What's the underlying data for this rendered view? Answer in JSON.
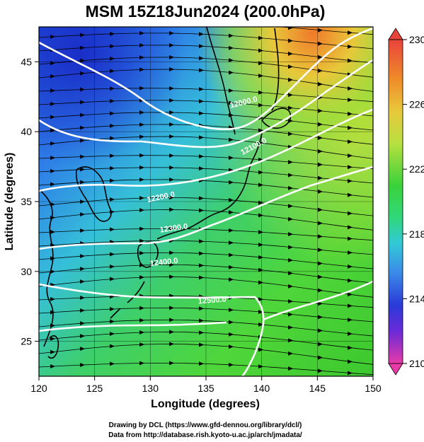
{
  "title": "MSM 15Z18Jun2024 (200.0hPa)",
  "xlabel": "Longitude (degrees)",
  "ylabel": "Latitude  (degrees)",
  "x_ticks": [
    "120",
    "125",
    "130",
    "135",
    "140",
    "145",
    "150"
  ],
  "y_ticks": [
    "25",
    "30",
    "35",
    "40",
    "45"
  ],
  "colorbar": {
    "labels": [
      "230",
      "226",
      "222",
      "218",
      "214",
      "210"
    ],
    "values": [
      230,
      226,
      222,
      218,
      214,
      210
    ],
    "colors": [
      "#e8443a",
      "#f08a2a",
      "#e8d23a",
      "#b8e040",
      "#3ad23a",
      "#2fd87a",
      "#32c8d8",
      "#3a8ae8",
      "#2a3ad8",
      "#6a2ad8",
      "#c82ac8",
      "#e83aa8"
    ]
  },
  "contours": [
    {
      "label": "12000.0"
    },
    {
      "label": "12100.0"
    },
    {
      "label": "12200.0"
    },
    {
      "label": "12300.0"
    },
    {
      "label": "12400.0"
    },
    {
      "label": "12500.0"
    }
  ],
  "credits": {
    "line1": "Drawing by DCL (https://www.gfd-dennou.org/library/dcl/)",
    "line2": "Data from http://database.rish.kyoto-u.ac.jp/arch/jmadata/"
  },
  "map_extent": {
    "lon": [
      120,
      150
    ],
    "lat": [
      22.5,
      47.5
    ]
  }
}
